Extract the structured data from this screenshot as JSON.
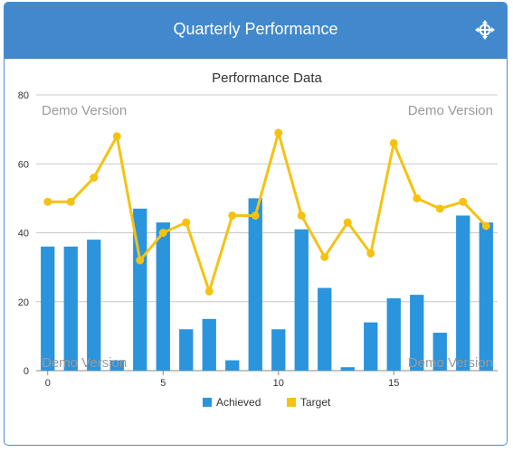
{
  "header": {
    "title": "Quarterly Performance",
    "icon": "move-crosshair-icon"
  },
  "colors": {
    "header_bg": "#4189cc",
    "achieved": "#2a94dd",
    "target": "#f5c213",
    "grid": "#c8c8c8",
    "watermark": "#9a9a9a"
  },
  "watermark": "Demo Version",
  "chart_data": {
    "type": "bar+line",
    "title": "Performance Data",
    "x": [
      0,
      1,
      2,
      3,
      4,
      5,
      6,
      7,
      8,
      9,
      10,
      11,
      12,
      13,
      14,
      15,
      16,
      17,
      18,
      19
    ],
    "xticks": [
      0,
      5,
      10,
      15
    ],
    "ylim": [
      0,
      80
    ],
    "yticks": [
      0,
      20,
      40,
      60,
      80
    ],
    "grid": true,
    "legend_position": "bottom",
    "series": [
      {
        "name": "Achieved",
        "type": "bar",
        "values": [
          36,
          36,
          38,
          3,
          47,
          43,
          12,
          15,
          3,
          50,
          12,
          41,
          24,
          1,
          14,
          21,
          22,
          11,
          45,
          43
        ]
      },
      {
        "name": "Target",
        "type": "line",
        "values": [
          49,
          49,
          56,
          68,
          32,
          40,
          43,
          23,
          45,
          45,
          69,
          45,
          33,
          43,
          34,
          66,
          50,
          47,
          49,
          42
        ]
      }
    ]
  }
}
